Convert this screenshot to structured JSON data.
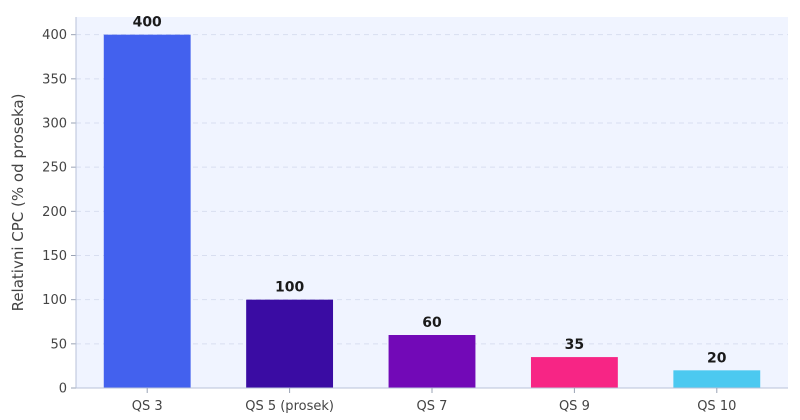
{
  "chart_data": {
    "type": "bar",
    "title": "",
    "xlabel": "",
    "ylabel": "Relativni CPC (% od proseka)",
    "categories": [
      "QS 3",
      "QS 5 (prosek)",
      "QS 7",
      "QS 9",
      "QS 10"
    ],
    "values": [
      400,
      100,
      60,
      35,
      20
    ],
    "data_labels": [
      "400",
      "100",
      "60",
      "35",
      "20"
    ],
    "colors": [
      "#4361ee",
      "#3a0ca3",
      "#7209b7",
      "#f72585",
      "#4cc9f0"
    ],
    "ylim": [
      0,
      420
    ],
    "yticks": [
      0,
      50,
      100,
      150,
      200,
      250,
      300,
      350,
      400
    ],
    "grid": true,
    "legend": "none",
    "background": "#f0f4ff"
  }
}
